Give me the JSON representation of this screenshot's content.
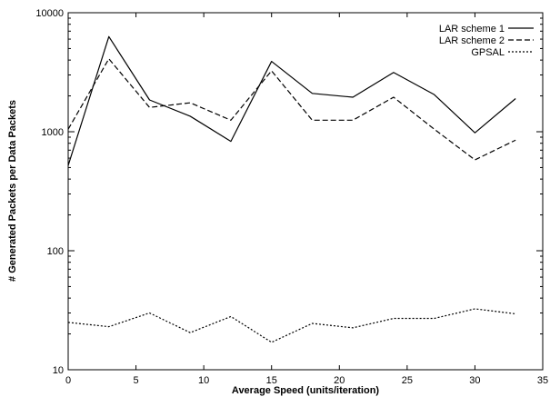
{
  "chart_data": {
    "type": "line",
    "title": "",
    "xlabel": "Average Speed (units/iteration)",
    "ylabel": "# Generated Packets per Data Packets",
    "xlim": [
      0,
      35
    ],
    "ylim": [
      10,
      10000
    ],
    "yscale": "log",
    "grid": false,
    "legend_position": "top-right",
    "xticks": [
      "0",
      "5",
      "10",
      "15",
      "20",
      "25",
      "30",
      "35"
    ],
    "yticks": [
      "10",
      "100",
      "1000",
      "10000"
    ],
    "x": [
      0,
      3,
      6,
      9,
      12,
      15,
      18,
      21,
      24,
      27,
      30,
      33
    ],
    "series": [
      {
        "name": "LAR scheme 1",
        "style": "solid",
        "values": [
          520,
          6300,
          1850,
          1350,
          830,
          3900,
          2100,
          1950,
          3150,
          2050,
          980,
          1900
        ]
      },
      {
        "name": "LAR scheme 2",
        "style": "dashed",
        "values": [
          1050,
          4100,
          1600,
          1750,
          1250,
          3250,
          1250,
          1250,
          1950,
          1050,
          580,
          850
        ]
      },
      {
        "name": "GPSAL",
        "style": "dotted",
        "values": [
          25,
          23,
          30,
          20.5,
          28,
          17,
          24.5,
          22.5,
          27,
          27,
          32.5,
          29.5
        ]
      }
    ]
  },
  "colors": {
    "line": "#000000",
    "background": "#ffffff"
  }
}
